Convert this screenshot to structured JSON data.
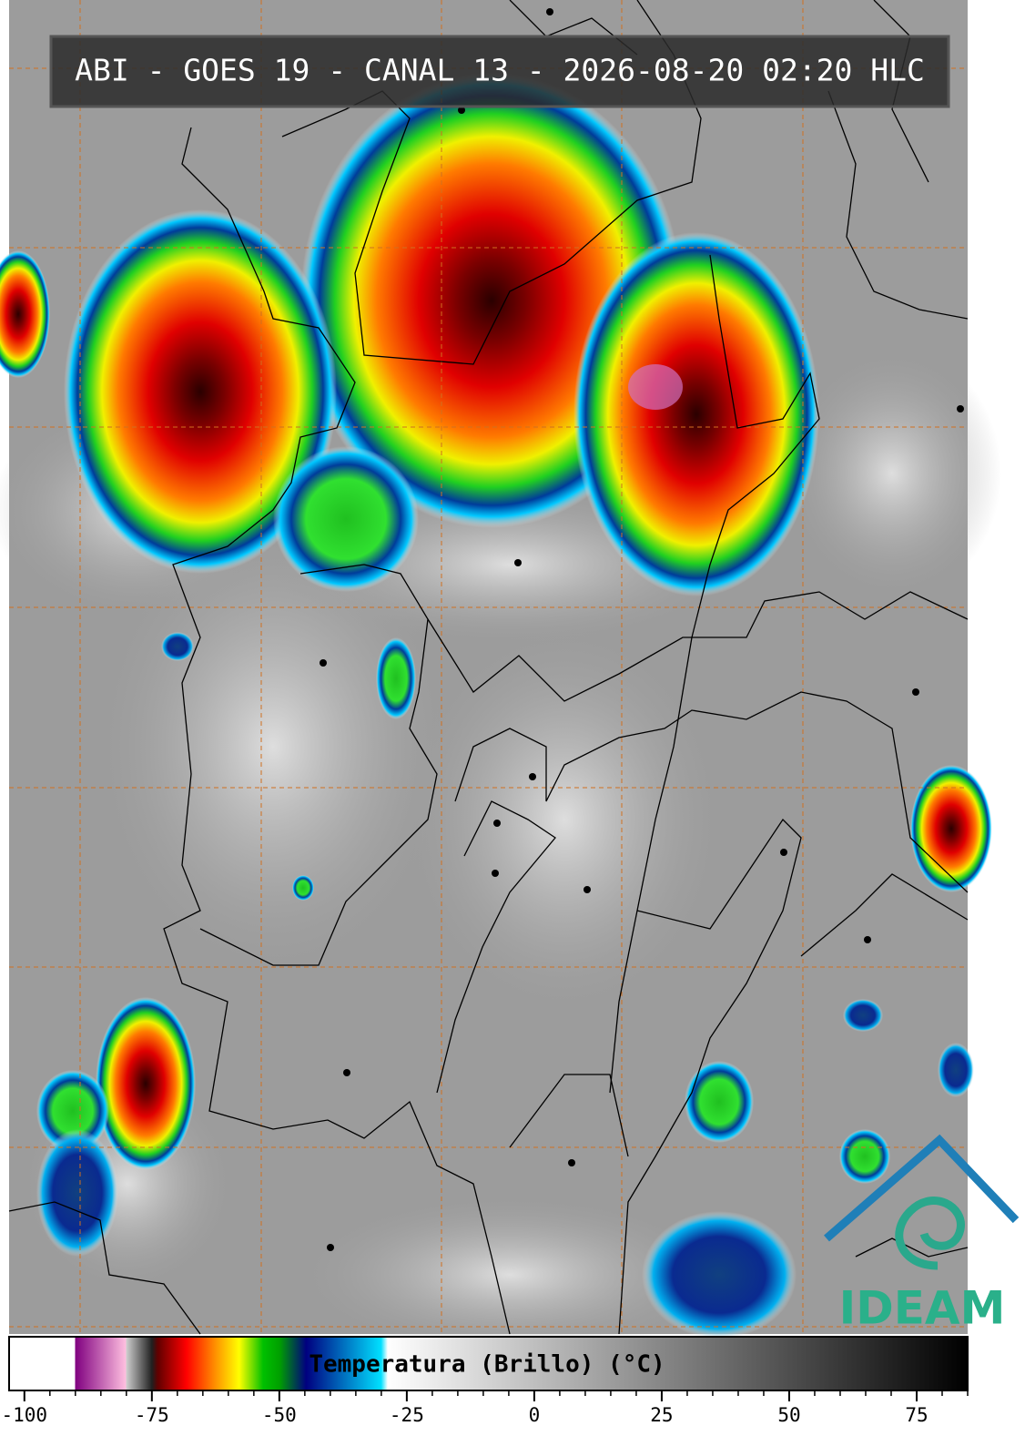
{
  "header": {
    "title": "ABI - GOES 19 - CANAL 13 - 2026-08-20 02:20 HLC"
  },
  "colorbar": {
    "label": "Temperatura (Brillo) (°C)",
    "lim": [
      -103,
      85
    ],
    "ticks": [
      -100,
      -75,
      -50,
      -25,
      0,
      25,
      50,
      75
    ],
    "minor_ticks": [
      -95,
      -90,
      -85,
      -80,
      -70,
      -65,
      -60,
      -55,
      -45,
      -40,
      -35,
      -30,
      -20,
      -15,
      -10,
      -5,
      5,
      10,
      15,
      20,
      30,
      35,
      40,
      45,
      55,
      60,
      65,
      70,
      80,
      85
    ]
  },
  "logo": {
    "text": "IDEAM"
  }
}
